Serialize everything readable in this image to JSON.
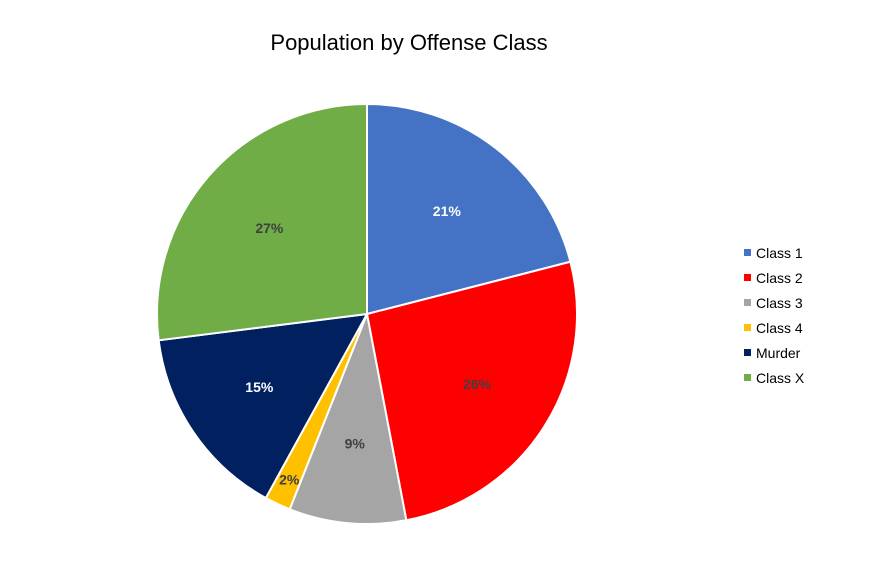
{
  "chart_data": {
    "type": "pie",
    "title": "Population by Offense Class",
    "categories": [
      "Class 1",
      "Class 2",
      "Class 3",
      "Class 4",
      "Murder",
      "Class X"
    ],
    "values": [
      21,
      26,
      9,
      2,
      15,
      27
    ],
    "labels": [
      "21%",
      "26%",
      "9%",
      "2%",
      "15%",
      "27%"
    ],
    "colors": [
      "#4472C4",
      "#FF0000",
      "#A5A5A5",
      "#FFC000",
      "#002060",
      "#70AD47"
    ],
    "label_colors": [
      "#FFFFFF",
      "#404040",
      "#404040",
      "#404040",
      "#FFFFFF",
      "#404040"
    ],
    "legend_position": "right",
    "start_angle": "12 o'clock",
    "direction": "clockwise"
  }
}
